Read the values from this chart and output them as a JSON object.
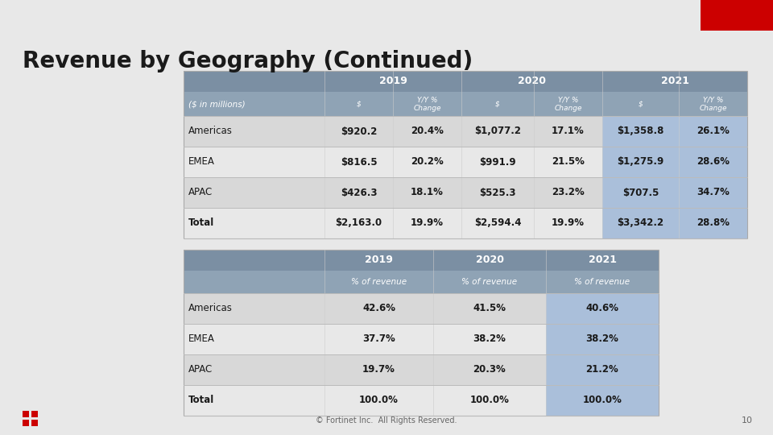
{
  "title": "Revenue by Geography (Continued)",
  "background_color": "#E8E8E8",
  "title_color": "#1A1A1A",
  "title_fontsize": 20,
  "table1": {
    "header_row1_years": [
      "2019",
      "2020",
      "2021"
    ],
    "header_row2": [
      "($ in millions)",
      "$",
      "Y/Y %\nChange",
      "$",
      "Y/Y %\nChange",
      "$",
      "Y/Y %\nChange"
    ],
    "rows": [
      [
        "Americas",
        "$920.2",
        "20.4%",
        "$1,077.2",
        "17.1%",
        "$1,358.8",
        "26.1%"
      ],
      [
        "EMEA",
        "$816.5",
        "20.2%",
        "$991.9",
        "21.5%",
        "$1,275.9",
        "28.6%"
      ],
      [
        "APAC",
        "$426.3",
        "18.1%",
        "$525.3",
        "23.2%",
        "$707.5",
        "34.7%"
      ],
      [
        "Total",
        "$2,163.0",
        "19.9%",
        "$2,594.4",
        "19.9%",
        "$3,342.2",
        "28.8%"
      ]
    ],
    "header_bg": "#7B8FA3",
    "header_text": "#FFFFFF",
    "subheader_bg": "#8FA3B5",
    "subheader_text": "#FFFFFF",
    "row_bg_alt1": "#D8D8D8",
    "row_bg_alt2": "#E8E8E8",
    "highlight_bg": "#AABFDA",
    "highlight_cols": [
      5,
      6
    ],
    "n_cols": 7
  },
  "table2": {
    "header_row1_years": [
      "2019",
      "2020",
      "2021"
    ],
    "header_row2": [
      "",
      "% of revenue",
      "% of revenue",
      "% of revenue"
    ],
    "rows": [
      [
        "Americas",
        "42.6%",
        "41.5%",
        "40.6%"
      ],
      [
        "EMEA",
        "37.7%",
        "38.2%",
        "38.2%"
      ],
      [
        "APAC",
        "19.7%",
        "20.3%",
        "21.2%"
      ],
      [
        "Total",
        "100.0%",
        "100.0%",
        "100.0%"
      ]
    ],
    "header_bg": "#7B8FA3",
    "header_text": "#FFFFFF",
    "subheader_bg": "#8FA3B5",
    "subheader_text": "#FFFFFF",
    "row_bg_alt1": "#D8D8D8",
    "row_bg_alt2": "#E8E8E8",
    "highlight_bg": "#AABFDA",
    "highlight_col": 3,
    "n_cols": 4
  },
  "footer_text": "© Fortinet Inc.  All Rights Reserved.",
  "page_number": "10",
  "red_corner_color": "#CC0000",
  "logo_color": "#CC0000"
}
